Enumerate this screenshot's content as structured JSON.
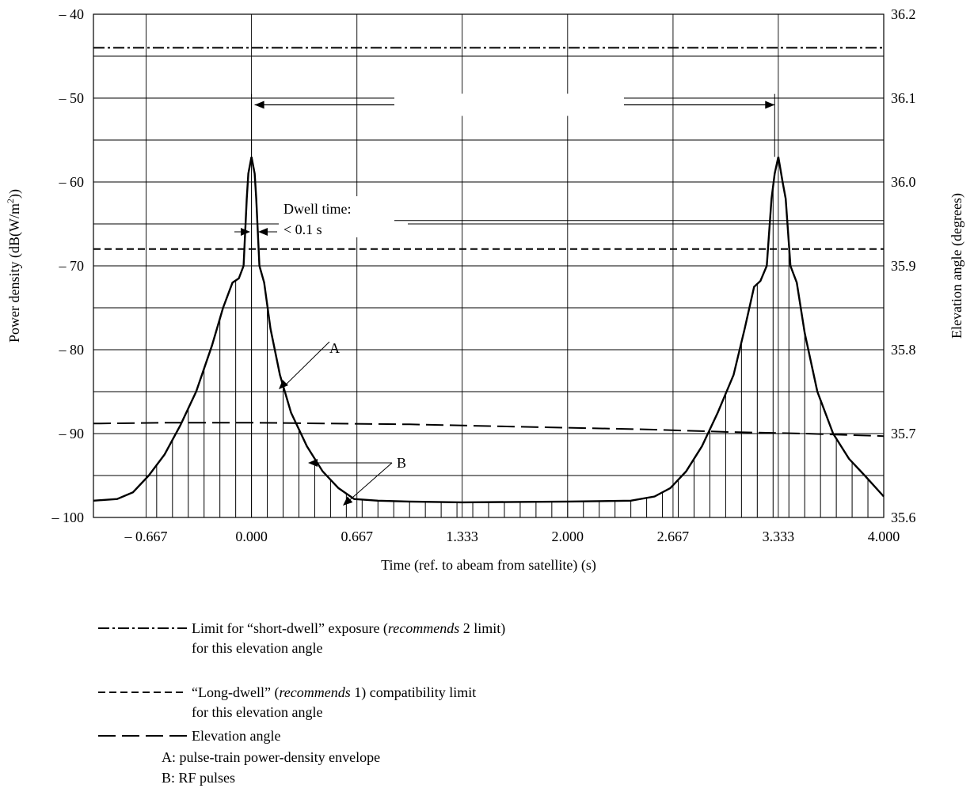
{
  "chart_data": {
    "type": "line",
    "xlabel": "Time (ref. to abeam from satellite) (s)",
    "ylabel_left": "Power density (dB(W/m²))",
    "ylabel_right": "Elevation angle (degrees)",
    "xlim": [
      -1.0,
      4.0
    ],
    "ylim_left": [
      -100,
      -40
    ],
    "ylim_right": [
      35.6,
      36.2
    ],
    "x_ticks": [
      -0.667,
      0.0,
      0.667,
      1.333,
      2.0,
      2.667,
      3.333,
      4.0
    ],
    "x_tick_labels": [
      "– 0.667",
      "0.000",
      "0.667",
      "1.333",
      "2.000",
      "2.667",
      "3.333",
      "4.000"
    ],
    "y_ticks_left": [
      -100,
      -90,
      -80,
      -70,
      -60,
      -50,
      -40
    ],
    "y_tick_labels_left": [
      "– 100",
      "– 90",
      "– 80",
      "– 70",
      "– 60",
      "– 50",
      "– 40"
    ],
    "y_ticks_right": [
      35.6,
      35.7,
      35.8,
      35.9,
      36.0,
      36.1,
      36.2
    ],
    "y_tick_labels_right": [
      "35.6",
      "35.7",
      "35.8",
      "35.9",
      "36.0",
      "36.1",
      "36.2"
    ],
    "grid": true,
    "series": [
      {
        "name": "Limit for “short-dwell” exposure (recommends 2 limit) for this elevation angle",
        "axis": "left",
        "style": "dash-dot",
        "x": [
          -1.0,
          4.0
        ],
        "y": [
          -44,
          -44
        ]
      },
      {
        "name": "“Long-dwell” (recommends 1) compatibility limit for this elevation angle",
        "axis": "left",
        "style": "dashed",
        "x": [
          -1.0,
          4.0
        ],
        "y": [
          -68,
          -68
        ]
      },
      {
        "name": "Elevation angle",
        "axis": "right",
        "style": "long-dash",
        "x": [
          -1.0,
          -0.5,
          0.0,
          0.5,
          1.0,
          1.5,
          2.0,
          2.5,
          3.0,
          3.5,
          4.0
        ],
        "y": [
          35.712,
          35.713,
          35.713,
          35.712,
          35.711,
          35.709,
          35.707,
          35.705,
          35.702,
          35.7,
          35.697
        ]
      },
      {
        "name": "A: pulse-train power-density envelope",
        "axis": "left",
        "style": "solid",
        "x": [
          -1.0,
          -0.85,
          -0.75,
          -0.65,
          -0.55,
          -0.45,
          -0.35,
          -0.25,
          -0.18,
          -0.12,
          -0.08,
          -0.05,
          -0.03,
          -0.02,
          0.0,
          0.02,
          0.03,
          0.05,
          0.08,
          0.12,
          0.18,
          0.25,
          0.35,
          0.45,
          0.55,
          0.65,
          0.8,
          1.0,
          1.333,
          2.0,
          2.4,
          2.55,
          2.65,
          2.75,
          2.85,
          2.95,
          3.05,
          3.12,
          3.18,
          3.22,
          3.26,
          3.29,
          3.31,
          3.333,
          3.36,
          3.38,
          3.41,
          3.45,
          3.5,
          3.58,
          3.68,
          3.78,
          3.88,
          4.0
        ],
        "y": [
          -98,
          -97.8,
          -97,
          -95,
          -92.5,
          -89,
          -85,
          -79.5,
          -75,
          -72,
          -71.5,
          -70,
          -62,
          -59,
          -57,
          -59,
          -62,
          -70,
          -72,
          -77.5,
          -83,
          -87.5,
          -91.5,
          -94.5,
          -96.5,
          -97.8,
          -98,
          -98.1,
          -98.2,
          -98.1,
          -98,
          -97.5,
          -96.5,
          -94.5,
          -91.5,
          -87.5,
          -83,
          -77.5,
          -72.5,
          -71.8,
          -70,
          -62,
          -59,
          -57,
          -60,
          -62,
          -70,
          -72,
          -78,
          -85,
          -90,
          -93,
          -95,
          -97.5
        ]
      },
      {
        "name": "B: RF pulses",
        "axis": "left",
        "style": "impulse",
        "x": [
          -0.6,
          -0.5,
          -0.4,
          -0.3,
          -0.2,
          -0.1,
          0.0,
          0.1,
          0.2,
          0.3,
          0.4,
          0.5,
          0.6,
          0.7,
          0.8,
          0.9,
          1.0,
          1.1,
          1.2,
          1.3,
          1.4,
          1.5,
          1.6,
          1.7,
          1.8,
          1.9,
          2.0,
          2.1,
          2.2,
          2.3,
          2.4,
          2.5,
          2.6,
          2.7,
          2.8,
          2.9,
          3.0,
          3.1,
          3.2,
          3.3,
          3.4,
          3.5,
          3.6,
          3.7,
          3.8,
          3.9
        ]
      }
    ],
    "annotations": {
      "dwell_line1": "Dwell time:",
      "dwell_line2": "< 0.1 s",
      "label_a": "A",
      "label_b": "B"
    }
  },
  "legend": [
    {
      "style": "dash-dot",
      "line1_pre": "Limit for “short-dwell” exposure (",
      "line1_em": "recommends",
      "line1_post": " 2 limit)",
      "line2": "for this elevation angle"
    },
    {
      "style": "dashed",
      "line1_pre": "“Long-dwell” (",
      "line1_em": "recommends",
      "line1_post": " 1) compatibility limit",
      "line2": "for this elevation angle"
    },
    {
      "style": "long-dash",
      "line1_pre": "Elevation angle",
      "line1_em": "",
      "line1_post": "",
      "line2": ""
    }
  ],
  "legend_notes": [
    "A: pulse-train power-density envelope",
    "B: RF pulses"
  ]
}
